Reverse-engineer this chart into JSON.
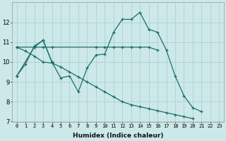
{
  "xlabel": "Humidex (Indice chaleur)",
  "background_color": "#cce8e8",
  "grid_color": "#aacccc",
  "line_color": "#1a6e6a",
  "xlim": [
    -0.5,
    23.5
  ],
  "ylim": [
    7,
    13
  ],
  "yticks": [
    7,
    8,
    9,
    10,
    11,
    12
  ],
  "xticks": [
    0,
    1,
    2,
    3,
    4,
    5,
    6,
    7,
    8,
    9,
    10,
    11,
    12,
    13,
    14,
    15,
    16,
    17,
    18,
    19,
    20,
    21,
    22,
    23
  ],
  "series": [
    {
      "x": [
        0,
        1,
        2,
        3,
        4,
        5,
        6,
        7,
        8,
        9,
        10,
        11,
        12,
        13,
        14,
        15,
        16,
        17,
        18,
        19,
        20,
        21
      ],
      "y": [
        9.3,
        9.9,
        10.8,
        11.1,
        10.0,
        9.2,
        9.3,
        8.5,
        9.7,
        10.35,
        10.4,
        11.5,
        12.15,
        12.15,
        12.5,
        11.65,
        11.5,
        10.6,
        9.3,
        8.3,
        7.7,
        7.5
      ]
    },
    {
      "x": [
        0,
        2,
        3,
        4,
        9,
        10,
        11,
        12,
        13,
        14,
        15,
        16
      ],
      "y": [
        10.75,
        10.75,
        10.75,
        10.75,
        10.75,
        10.75,
        10.75,
        10.75,
        10.75,
        10.75,
        10.75,
        10.6
      ]
    },
    {
      "x": [
        0,
        1,
        2,
        3,
        4,
        5,
        6,
        7,
        8,
        9,
        10,
        11,
        12,
        13,
        14,
        15,
        16,
        17,
        18,
        19,
        20,
        21,
        22,
        23
      ],
      "y": [
        10.75,
        10.55,
        10.3,
        10.0,
        9.95,
        9.75,
        9.5,
        9.25,
        9.0,
        8.75,
        8.5,
        8.25,
        8.0,
        7.85,
        7.75,
        7.65,
        7.55,
        7.45,
        7.35,
        7.25,
        7.15,
        null,
        null,
        null
      ]
    },
    {
      "x": [
        0,
        2,
        3,
        4
      ],
      "y": [
        9.3,
        10.75,
        11.1,
        10.0
      ]
    }
  ]
}
